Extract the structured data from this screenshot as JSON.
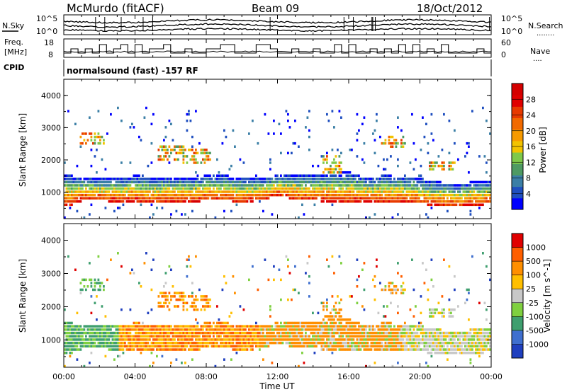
{
  "header": {
    "station": "McMurdo (fitACF)",
    "beam": "Beam 09",
    "date": "18/Oct/2012"
  },
  "noise_panel": {
    "left_label": "N.Sky",
    "right_label": "N.Search",
    "right_dots": "........",
    "left_ticks": [
      "10^5",
      "10^0"
    ],
    "right_ticks": [
      "10^5",
      "10^0"
    ]
  },
  "freq_panel": {
    "left_label_1": "Freq.",
    "left_label_2": "[MHz]",
    "left_ticks": [
      "18",
      "8"
    ],
    "right_label": "Nave",
    "right_dots": "....",
    "right_ticks": [
      "60",
      "0"
    ]
  },
  "cpid_panel": {
    "label": "CPID",
    "text": "normalsound (fast) -157 RF"
  },
  "power_panel": {
    "ylabel": "Slant Range [km]",
    "yticks": [
      "4000",
      "3000",
      "2000",
      "1000"
    ],
    "colorbar_label": "Power [dB]",
    "colorbar_ticks": [
      "28",
      "24",
      "20",
      "16",
      "12",
      "8",
      "4"
    ],
    "colors": [
      "#0000ff",
      "#1f4fbf",
      "#3b7fa6",
      "#4e9a63",
      "#7fc94a",
      "#f2c300",
      "#f79a00",
      "#f26a00",
      "#e83a00",
      "#e00000",
      "#d40000"
    ]
  },
  "velocity_panel": {
    "ylabel": "Slant Range [km]",
    "yticks": [
      "4000",
      "3000",
      "2000",
      "1000"
    ],
    "colorbar_label": "Velocity [m s^-1]",
    "colorbar_ticks": [
      "1000",
      "500",
      "100",
      "25",
      "-25",
      "-100",
      "-500",
      "-1000"
    ],
    "colors": [
      "#1f3fbf",
      "#3f6fcf",
      "#3f9f6f",
      "#7fd03f",
      "#c8c8c8",
      "#ffbf00",
      "#ff8f00",
      "#ff5f00",
      "#e00000"
    ]
  },
  "xaxis": {
    "label": "Time UT",
    "ticks": [
      "00:00",
      "04:00",
      "08:00",
      "12:00",
      "16:00",
      "20:00",
      "00:00"
    ]
  },
  "chart_data": [
    {
      "type": "heatmap",
      "title": "Power",
      "xlabel": "Time UT",
      "ylabel": "Slant Range [km]",
      "xlim": [
        0,
        24
      ],
      "ylim": [
        180,
        4500
      ],
      "zlim": [
        0,
        30
      ],
      "band_lower_km": [
        [
          0,
          500
        ],
        [
          1,
          700
        ],
        [
          2,
          700
        ],
        [
          3,
          650
        ],
        [
          4,
          680
        ],
        [
          5,
          600
        ],
        [
          6,
          650
        ],
        [
          7,
          650
        ],
        [
          8,
          700
        ],
        [
          9,
          700
        ],
        [
          10,
          650
        ],
        [
          11,
          700
        ],
        [
          12,
          850
        ],
        [
          13,
          700
        ],
        [
          14,
          700
        ],
        [
          15,
          650
        ],
        [
          16,
          650
        ],
        [
          17,
          650
        ],
        [
          18,
          600
        ],
        [
          19,
          650
        ],
        [
          20,
          600
        ],
        [
          21,
          550
        ],
        [
          22,
          500
        ],
        [
          23,
          550
        ],
        [
          24,
          600
        ]
      ],
      "band_upper_km": [
        [
          0,
          1500
        ],
        [
          1,
          1450
        ],
        [
          2,
          1400
        ],
        [
          3,
          1400
        ],
        [
          4,
          1500
        ],
        [
          5,
          1400
        ],
        [
          6,
          1450
        ],
        [
          7,
          1400
        ],
        [
          8,
          1500
        ],
        [
          9,
          1500
        ],
        [
          10,
          1400
        ],
        [
          11,
          1400
        ],
        [
          12,
          1500
        ],
        [
          13,
          1500
        ],
        [
          14,
          1500
        ],
        [
          15,
          1550
        ],
        [
          16,
          1600
        ],
        [
          17,
          1400
        ],
        [
          18,
          1500
        ],
        [
          19,
          1450
        ],
        [
          20,
          1400
        ],
        [
          21,
          1300
        ],
        [
          22,
          1200
        ],
        [
          23,
          1300
        ],
        [
          24,
          1300
        ]
      ]
    },
    {
      "type": "heatmap",
      "title": "Velocity",
      "xlabel": "Time UT",
      "ylabel": "Slant Range [km]",
      "xlim": [
        0,
        24
      ],
      "ylim": [
        180,
        4500
      ],
      "zlim": [
        -1000,
        1000
      ]
    }
  ]
}
